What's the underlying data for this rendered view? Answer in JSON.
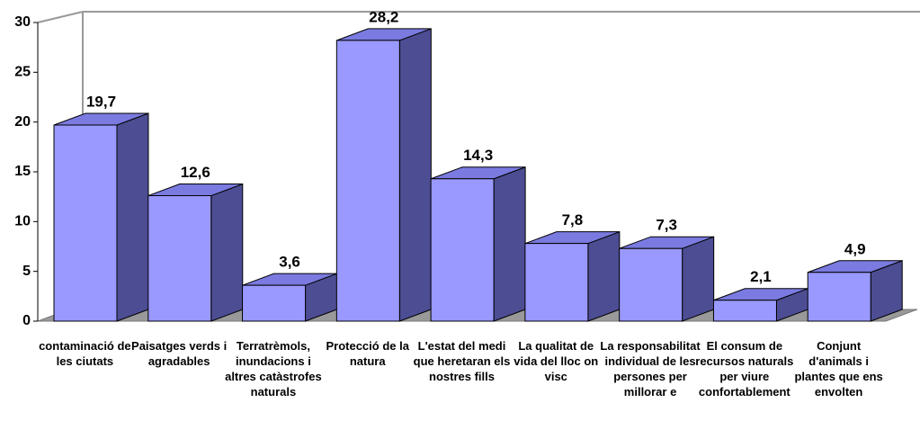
{
  "chart_data": {
    "type": "bar3d",
    "categories": [
      "contaminació de les ciutats",
      "Paisatges verds i agradables",
      "Terratrèmols, inundacions i altres catàstrofes naturals",
      "Protecció de la natura",
      "L'estat del medi que heretaran els nostres fills",
      "La qualitat de vida del lloc on visc",
      "La responsabilitat individual de les persones per millorar e",
      "El consum de recursos naturals per viure confortablement",
      "Conjunt d'animals i plantes que ens envolten"
    ],
    "values": [
      19.7,
      12.6,
      3.6,
      28.2,
      14.3,
      7.8,
      7.3,
      2.1,
      4.9
    ],
    "value_labels": [
      "19,7",
      "12,6",
      "3,6",
      "28,2",
      "14,3",
      "7,8",
      "7,3",
      "2,1",
      "4,9"
    ],
    "color": "#9999ff",
    "ylim": [
      0,
      30
    ],
    "yticks": [
      0,
      5,
      10,
      15,
      20,
      25,
      30
    ]
  }
}
